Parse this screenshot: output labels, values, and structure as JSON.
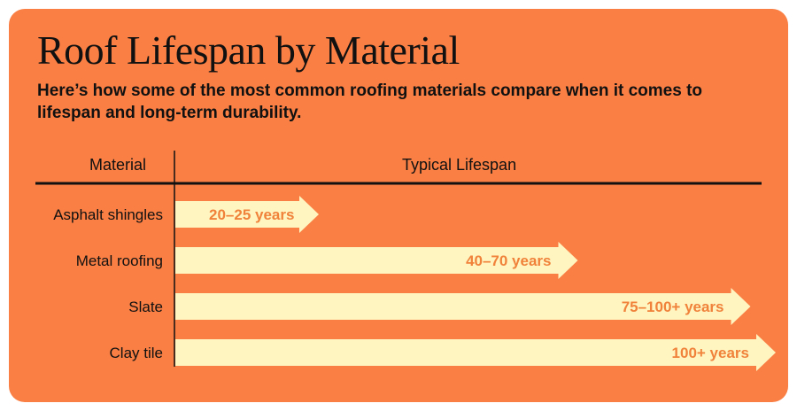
{
  "title": "Roof Lifespan by Material",
  "subtitle": "Here’s how some of the most common roofing materials compare when it comes to lifespan and long-term durability.",
  "colors": {
    "background": "#f97f44",
    "arrow_fill": "#fef5c1",
    "value_text": "#f0823a",
    "text": "#111111"
  },
  "table": {
    "header_material": "Material",
    "header_lifespan": "Typical Lifespan"
  },
  "chart_data": {
    "type": "bar",
    "orientation": "horizontal",
    "categories": [
      "Asphalt shingles",
      "Metal roofing",
      "Slate",
      "Clay tile"
    ],
    "series": [
      {
        "ranges": [
          [
            20,
            25
          ],
          [
            40,
            70
          ],
          [
            75,
            100
          ],
          [
            100,
            null
          ]
        ],
        "labels": [
          "20–25 years",
          "40–70 years",
          "75–100+ years",
          "100+ years"
        ]
      }
    ],
    "xlabel": "Typical Lifespan",
    "ylabel": "Material",
    "grid": false,
    "legend": "none"
  }
}
